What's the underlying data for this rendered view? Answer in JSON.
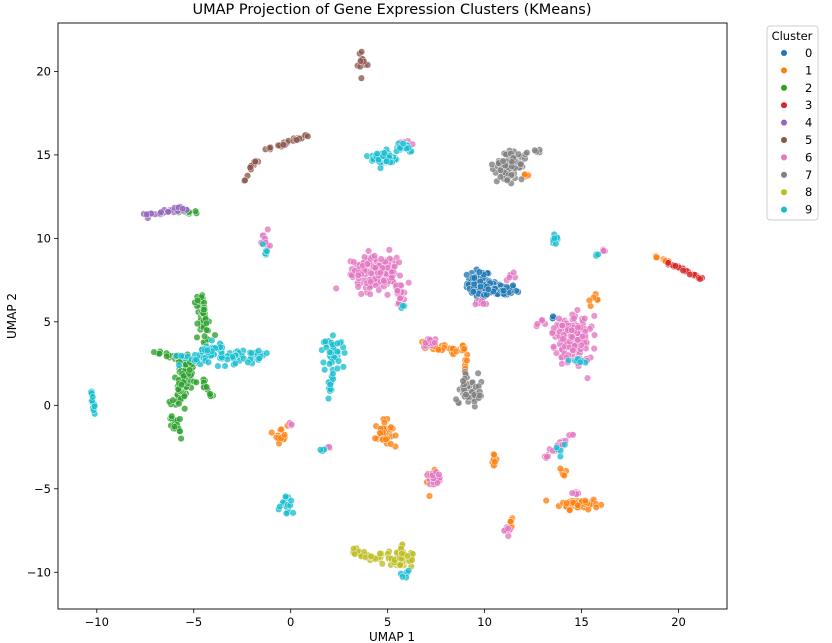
{
  "chart_data": {
    "type": "scatter",
    "title": "UMAP Projection of Gene Expression Clusters (KMeans)",
    "xlabel": "UMAP 1",
    "ylabel": "UMAP 2",
    "xlim": [
      -12,
      22.5
    ],
    "ylim": [
      -12.2,
      22.9
    ],
    "xticks": [
      -10,
      -5,
      0,
      5,
      10,
      15,
      20
    ],
    "yticks": [
      -10,
      -5,
      0,
      5,
      10,
      15,
      20
    ],
    "grid": false,
    "legend": {
      "title": "Cluster",
      "placement": "outside-top-right",
      "labels": [
        "0",
        "1",
        "2",
        "3",
        "4",
        "5",
        "6",
        "7",
        "8",
        "9"
      ]
    },
    "colors": [
      "#1f77b4",
      "#ff7f0e",
      "#2ca02c",
      "#d62728",
      "#9467bd",
      "#8c564b",
      "#e377c2",
      "#7f7f7f",
      "#bcbd22",
      "#17becf"
    ],
    "series": [
      {
        "name": "0",
        "blobs": [
          {
            "type": "blob",
            "cx": 9.7,
            "cy": 7.3,
            "rx": 0.55,
            "ry": 0.75,
            "n": 70
          },
          {
            "type": "blob",
            "cx": 10.8,
            "cy": 6.9,
            "rx": 0.8,
            "ry": 0.35,
            "n": 60
          },
          {
            "type": "blob",
            "cx": 13.5,
            "cy": 5.3,
            "rx": 0.15,
            "ry": 0.1,
            "n": 4
          }
        ]
      },
      {
        "name": "1",
        "blobs": [
          {
            "type": "blob",
            "cx": 14.9,
            "cy": -5.9,
            "rx": 0.9,
            "ry": 0.3,
            "n": 60
          },
          {
            "type": "blob",
            "cx": 4.8,
            "cy": -1.7,
            "rx": 0.4,
            "ry": 0.7,
            "n": 40
          },
          {
            "type": "blob",
            "cx": -0.5,
            "cy": -1.7,
            "rx": 0.3,
            "ry": 0.5,
            "n": 15
          },
          {
            "type": "blob",
            "cx": 10.5,
            "cy": -3.3,
            "rx": 0.12,
            "ry": 0.4,
            "n": 8
          },
          {
            "type": "blob",
            "cx": 7.3,
            "cy": -4.5,
            "rx": 0.25,
            "ry": 0.5,
            "n": 12
          },
          {
            "type": "blob",
            "cx": 12.1,
            "cy": 13.8,
            "rx": 0.2,
            "ry": 0.15,
            "n": 5
          },
          {
            "type": "blob",
            "cx": 14.1,
            "cy": -4.0,
            "rx": 0.2,
            "ry": 0.3,
            "n": 6
          },
          {
            "type": "blob",
            "cx": 11.4,
            "cy": -6.9,
            "rx": 0.15,
            "ry": 0.3,
            "n": 6
          },
          {
            "type": "blob",
            "cx": 15.6,
            "cy": 6.3,
            "rx": 0.25,
            "ry": 0.3,
            "n": 6
          },
          {
            "type": "line",
            "x1": 6.8,
            "y1": 3.6,
            "x2": 8.9,
            "y2": 3.3,
            "n": 30,
            "jitter": 0.15
          },
          {
            "type": "line",
            "x1": 8.9,
            "y1": 3.7,
            "x2": 9.2,
            "y2": 1.6,
            "n": 15,
            "jitter": 0.15
          },
          {
            "type": "line",
            "x1": 18.8,
            "y1": 8.9,
            "x2": 19.5,
            "y2": 8.6,
            "n": 8,
            "jitter": 0.06
          }
        ]
      },
      {
        "name": "2",
        "blobs": [
          {
            "type": "line",
            "x1": -5.9,
            "y1": 0.0,
            "x2": -5.2,
            "y2": 2.8,
            "n": 90,
            "jitter": 0.35
          },
          {
            "type": "line",
            "x1": -4.7,
            "y1": 6.5,
            "x2": -4.3,
            "y2": 3.6,
            "n": 45,
            "jitter": 0.3
          },
          {
            "type": "line",
            "x1": -7.0,
            "y1": 3.2,
            "x2": -5.6,
            "y2": 2.7,
            "n": 22,
            "jitter": 0.15
          },
          {
            "type": "line",
            "x1": -6.1,
            "y1": -0.6,
            "x2": -5.7,
            "y2": -1.9,
            "n": 20,
            "jitter": 0.2
          },
          {
            "type": "line",
            "x1": -4.8,
            "y1": 1.5,
            "x2": -4.0,
            "y2": 0.5,
            "n": 15,
            "jitter": 0.2
          },
          {
            "type": "line",
            "x1": -5.8,
            "y1": 11.6,
            "x2": -4.8,
            "y2": 11.5,
            "n": 8,
            "jitter": 0.08
          }
        ]
      },
      {
        "name": "3",
        "blobs": [
          {
            "type": "line",
            "x1": 19.3,
            "y1": 8.6,
            "x2": 21.2,
            "y2": 7.6,
            "n": 35,
            "jitter": 0.08
          }
        ]
      },
      {
        "name": "4",
        "blobs": [
          {
            "type": "line",
            "x1": -7.5,
            "y1": 11.4,
            "x2": -5.3,
            "y2": 11.8,
            "n": 35,
            "jitter": 0.15
          }
        ]
      },
      {
        "name": "5",
        "blobs": [
          {
            "type": "line",
            "x1": -2.4,
            "y1": 13.5,
            "x2": -1.5,
            "y2": 15.2,
            "n": 15,
            "jitter": 0.1
          },
          {
            "type": "line",
            "x1": -1.5,
            "y1": 15.2,
            "x2": 0.9,
            "y2": 16.2,
            "n": 25,
            "jitter": 0.1
          },
          {
            "type": "blob",
            "cx": 3.7,
            "cy": 20.5,
            "rx": 0.25,
            "ry": 0.6,
            "n": 15
          }
        ]
      },
      {
        "name": "6",
        "blobs": [
          {
            "type": "blob",
            "cx": 4.3,
            "cy": 8.0,
            "rx": 1.1,
            "ry": 1.0,
            "n": 170
          },
          {
            "type": "blob",
            "cx": 5.6,
            "cy": 6.8,
            "rx": 0.25,
            "ry": 0.8,
            "n": 20
          },
          {
            "type": "blob",
            "cx": 14.5,
            "cy": 4.0,
            "rx": 0.85,
            "ry": 1.3,
            "n": 160
          },
          {
            "type": "blob",
            "cx": 7.4,
            "cy": -4.4,
            "rx": 0.3,
            "ry": 0.5,
            "n": 20
          },
          {
            "type": "blob",
            "cx": -1.3,
            "cy": 9.9,
            "rx": 0.25,
            "ry": 0.5,
            "n": 12
          },
          {
            "type": "blob",
            "cx": 7.1,
            "cy": 3.8,
            "rx": 0.35,
            "ry": 0.35,
            "n": 15
          },
          {
            "type": "blob",
            "cx": 11.3,
            "cy": 7.6,
            "rx": 0.3,
            "ry": 0.2,
            "n": 6
          },
          {
            "type": "blob",
            "cx": 9.8,
            "cy": 6.0,
            "rx": 0.4,
            "ry": 0.3,
            "n": 8
          },
          {
            "type": "blob",
            "cx": 16.2,
            "cy": 9.3,
            "rx": 0.12,
            "ry": 0.12,
            "n": 4
          },
          {
            "type": "blob",
            "cx": 11.2,
            "cy": -7.4,
            "rx": 0.25,
            "ry": 0.3,
            "n": 8
          },
          {
            "type": "blob",
            "cx": 14.6,
            "cy": -5.3,
            "rx": 0.3,
            "ry": 0.2,
            "n": 6
          },
          {
            "type": "line",
            "x1": 13.2,
            "y1": -3.1,
            "x2": 14.6,
            "y2": -1.6,
            "n": 22,
            "jitter": 0.15
          },
          {
            "type": "blob",
            "cx": 5.8,
            "cy": 15.7,
            "rx": 0.35,
            "ry": 0.2,
            "n": 6
          },
          {
            "type": "blob",
            "cx": 0.0,
            "cy": -1.2,
            "rx": 0.12,
            "ry": 0.15,
            "n": 3
          },
          {
            "type": "blob",
            "cx": 13.0,
            "cy": 5.0,
            "rx": 0.3,
            "ry": 0.2,
            "n": 6
          },
          {
            "type": "blob",
            "cx": 2.0,
            "cy": -2.5,
            "rx": 0.1,
            "ry": 0.1,
            "n": 3
          }
        ]
      },
      {
        "name": "7",
        "blobs": [
          {
            "type": "blob",
            "cx": 11.3,
            "cy": 14.4,
            "rx": 0.65,
            "ry": 0.75,
            "n": 80
          },
          {
            "type": "line",
            "x1": 12.1,
            "y1": 15.0,
            "x2": 13.0,
            "y2": 15.3,
            "n": 6,
            "jitter": 0.1
          },
          {
            "type": "blob",
            "cx": 9.3,
            "cy": 0.7,
            "rx": 0.5,
            "ry": 0.65,
            "n": 45
          },
          {
            "type": "line",
            "x1": 8.6,
            "y1": 0.5,
            "x2": 9.1,
            "y2": 1.9,
            "n": 8,
            "jitter": 0.1
          }
        ]
      },
      {
        "name": "8",
        "blobs": [
          {
            "type": "line",
            "x1": 3.2,
            "y1": -8.8,
            "x2": 4.6,
            "y2": -9.1,
            "n": 25,
            "jitter": 0.2
          },
          {
            "type": "blob",
            "cx": 5.6,
            "cy": -9.2,
            "rx": 0.6,
            "ry": 0.45,
            "n": 55
          },
          {
            "type": "line",
            "x1": 5.6,
            "y1": -8.3,
            "x2": 6.0,
            "y2": -9.3,
            "n": 12,
            "jitter": 0.2
          }
        ]
      },
      {
        "name": "9",
        "blobs": [
          {
            "type": "line",
            "x1": -5.5,
            "y1": 2.8,
            "x2": -1.5,
            "y2": 2.9,
            "n": 70,
            "jitter": 0.35
          },
          {
            "type": "blob",
            "cx": -4.1,
            "cy": 3.2,
            "rx": 0.6,
            "ry": 0.6,
            "n": 40
          },
          {
            "type": "blob",
            "cx": 2.2,
            "cy": 3.2,
            "rx": 0.5,
            "ry": 0.8,
            "n": 40
          },
          {
            "type": "line",
            "x1": 2.3,
            "y1": 2.3,
            "x2": 1.9,
            "y2": 0.3,
            "n": 14,
            "jitter": 0.12
          },
          {
            "type": "blob",
            "cx": 4.8,
            "cy": 14.8,
            "rx": 0.6,
            "ry": 0.45,
            "n": 45
          },
          {
            "type": "blob",
            "cx": 5.8,
            "cy": 15.5,
            "rx": 0.55,
            "ry": 0.3,
            "n": 25
          },
          {
            "type": "line",
            "x1": -10.3,
            "y1": 0.9,
            "x2": -10.1,
            "y2": -0.6,
            "n": 14,
            "jitter": 0.07
          },
          {
            "type": "blob",
            "cx": -0.2,
            "cy": -5.9,
            "rx": 0.3,
            "ry": 0.55,
            "n": 15
          },
          {
            "type": "blob",
            "cx": 13.6,
            "cy": 10.0,
            "rx": 0.2,
            "ry": 0.4,
            "n": 10
          },
          {
            "type": "blob",
            "cx": -1.3,
            "cy": 9.3,
            "rx": 0.12,
            "ry": 0.3,
            "n": 5
          },
          {
            "type": "line",
            "x1": 1.5,
            "y1": -2.8,
            "x2": 1.8,
            "y2": -2.6,
            "n": 4,
            "jitter": 0.05
          },
          {
            "type": "blob",
            "cx": 14.8,
            "cy": 2.7,
            "rx": 0.4,
            "ry": 0.15,
            "n": 8
          },
          {
            "type": "blob",
            "cx": 5.9,
            "cy": -10.1,
            "rx": 0.25,
            "ry": 0.2,
            "n": 6
          },
          {
            "type": "blob",
            "cx": 15.8,
            "cy": 9.0,
            "rx": 0.12,
            "ry": 0.12,
            "n": 3
          },
          {
            "type": "blob",
            "cx": 13.9,
            "cy": -2.5,
            "rx": 0.2,
            "ry": 0.3,
            "n": 5
          },
          {
            "type": "blob",
            "cx": 5.8,
            "cy": 5.9,
            "rx": 0.1,
            "ry": 0.15,
            "n": 3
          }
        ]
      }
    ]
  }
}
